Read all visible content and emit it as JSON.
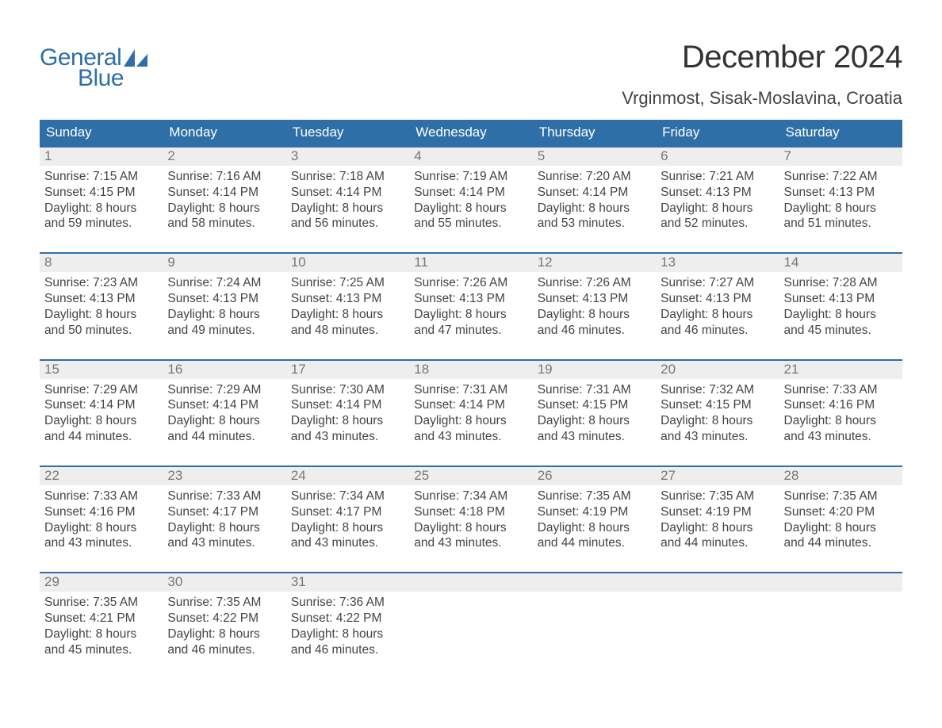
{
  "brand": {
    "word1": "General",
    "word2": "Blue",
    "color": "#2f6fa7"
  },
  "title": "December 2024",
  "location": "Vrginmost, Sisak-Moslavina, Croatia",
  "colors": {
    "header_bg": "#2f6fa7",
    "header_text": "#ffffff",
    "daynum_bg": "#eeeeee",
    "daynum_text": "#777777",
    "body_text": "#444444",
    "week_border": "#2f6fa7",
    "page_bg": "#ffffff"
  },
  "fonts": {
    "title_pt": 40,
    "location_pt": 22,
    "header_pt": 17,
    "daynum_pt": 17,
    "body_pt": 15.5
  },
  "dayHeaders": [
    "Sunday",
    "Monday",
    "Tuesday",
    "Wednesday",
    "Thursday",
    "Friday",
    "Saturday"
  ],
  "weeks": [
    [
      {
        "n": "1",
        "sunrise": "Sunrise: 7:15 AM",
        "sunset": "Sunset: 4:15 PM",
        "d1": "Daylight: 8 hours",
        "d2": "and 59 minutes."
      },
      {
        "n": "2",
        "sunrise": "Sunrise: 7:16 AM",
        "sunset": "Sunset: 4:14 PM",
        "d1": "Daylight: 8 hours",
        "d2": "and 58 minutes."
      },
      {
        "n": "3",
        "sunrise": "Sunrise: 7:18 AM",
        "sunset": "Sunset: 4:14 PM",
        "d1": "Daylight: 8 hours",
        "d2": "and 56 minutes."
      },
      {
        "n": "4",
        "sunrise": "Sunrise: 7:19 AM",
        "sunset": "Sunset: 4:14 PM",
        "d1": "Daylight: 8 hours",
        "d2": "and 55 minutes."
      },
      {
        "n": "5",
        "sunrise": "Sunrise: 7:20 AM",
        "sunset": "Sunset: 4:14 PM",
        "d1": "Daylight: 8 hours",
        "d2": "and 53 minutes."
      },
      {
        "n": "6",
        "sunrise": "Sunrise: 7:21 AM",
        "sunset": "Sunset: 4:13 PM",
        "d1": "Daylight: 8 hours",
        "d2": "and 52 minutes."
      },
      {
        "n": "7",
        "sunrise": "Sunrise: 7:22 AM",
        "sunset": "Sunset: 4:13 PM",
        "d1": "Daylight: 8 hours",
        "d2": "and 51 minutes."
      }
    ],
    [
      {
        "n": "8",
        "sunrise": "Sunrise: 7:23 AM",
        "sunset": "Sunset: 4:13 PM",
        "d1": "Daylight: 8 hours",
        "d2": "and 50 minutes."
      },
      {
        "n": "9",
        "sunrise": "Sunrise: 7:24 AM",
        "sunset": "Sunset: 4:13 PM",
        "d1": "Daylight: 8 hours",
        "d2": "and 49 minutes."
      },
      {
        "n": "10",
        "sunrise": "Sunrise: 7:25 AM",
        "sunset": "Sunset: 4:13 PM",
        "d1": "Daylight: 8 hours",
        "d2": "and 48 minutes."
      },
      {
        "n": "11",
        "sunrise": "Sunrise: 7:26 AM",
        "sunset": "Sunset: 4:13 PM",
        "d1": "Daylight: 8 hours",
        "d2": "and 47 minutes."
      },
      {
        "n": "12",
        "sunrise": "Sunrise: 7:26 AM",
        "sunset": "Sunset: 4:13 PM",
        "d1": "Daylight: 8 hours",
        "d2": "and 46 minutes."
      },
      {
        "n": "13",
        "sunrise": "Sunrise: 7:27 AM",
        "sunset": "Sunset: 4:13 PM",
        "d1": "Daylight: 8 hours",
        "d2": "and 46 minutes."
      },
      {
        "n": "14",
        "sunrise": "Sunrise: 7:28 AM",
        "sunset": "Sunset: 4:13 PM",
        "d1": "Daylight: 8 hours",
        "d2": "and 45 minutes."
      }
    ],
    [
      {
        "n": "15",
        "sunrise": "Sunrise: 7:29 AM",
        "sunset": "Sunset: 4:14 PM",
        "d1": "Daylight: 8 hours",
        "d2": "and 44 minutes."
      },
      {
        "n": "16",
        "sunrise": "Sunrise: 7:29 AM",
        "sunset": "Sunset: 4:14 PM",
        "d1": "Daylight: 8 hours",
        "d2": "and 44 minutes."
      },
      {
        "n": "17",
        "sunrise": "Sunrise: 7:30 AM",
        "sunset": "Sunset: 4:14 PM",
        "d1": "Daylight: 8 hours",
        "d2": "and 43 minutes."
      },
      {
        "n": "18",
        "sunrise": "Sunrise: 7:31 AM",
        "sunset": "Sunset: 4:14 PM",
        "d1": "Daylight: 8 hours",
        "d2": "and 43 minutes."
      },
      {
        "n": "19",
        "sunrise": "Sunrise: 7:31 AM",
        "sunset": "Sunset: 4:15 PM",
        "d1": "Daylight: 8 hours",
        "d2": "and 43 minutes."
      },
      {
        "n": "20",
        "sunrise": "Sunrise: 7:32 AM",
        "sunset": "Sunset: 4:15 PM",
        "d1": "Daylight: 8 hours",
        "d2": "and 43 minutes."
      },
      {
        "n": "21",
        "sunrise": "Sunrise: 7:33 AM",
        "sunset": "Sunset: 4:16 PM",
        "d1": "Daylight: 8 hours",
        "d2": "and 43 minutes."
      }
    ],
    [
      {
        "n": "22",
        "sunrise": "Sunrise: 7:33 AM",
        "sunset": "Sunset: 4:16 PM",
        "d1": "Daylight: 8 hours",
        "d2": "and 43 minutes."
      },
      {
        "n": "23",
        "sunrise": "Sunrise: 7:33 AM",
        "sunset": "Sunset: 4:17 PM",
        "d1": "Daylight: 8 hours",
        "d2": "and 43 minutes."
      },
      {
        "n": "24",
        "sunrise": "Sunrise: 7:34 AM",
        "sunset": "Sunset: 4:17 PM",
        "d1": "Daylight: 8 hours",
        "d2": "and 43 minutes."
      },
      {
        "n": "25",
        "sunrise": "Sunrise: 7:34 AM",
        "sunset": "Sunset: 4:18 PM",
        "d1": "Daylight: 8 hours",
        "d2": "and 43 minutes."
      },
      {
        "n": "26",
        "sunrise": "Sunrise: 7:35 AM",
        "sunset": "Sunset: 4:19 PM",
        "d1": "Daylight: 8 hours",
        "d2": "and 44 minutes."
      },
      {
        "n": "27",
        "sunrise": "Sunrise: 7:35 AM",
        "sunset": "Sunset: 4:19 PM",
        "d1": "Daylight: 8 hours",
        "d2": "and 44 minutes."
      },
      {
        "n": "28",
        "sunrise": "Sunrise: 7:35 AM",
        "sunset": "Sunset: 4:20 PM",
        "d1": "Daylight: 8 hours",
        "d2": "and 44 minutes."
      }
    ],
    [
      {
        "n": "29",
        "sunrise": "Sunrise: 7:35 AM",
        "sunset": "Sunset: 4:21 PM",
        "d1": "Daylight: 8 hours",
        "d2": "and 45 minutes."
      },
      {
        "n": "30",
        "sunrise": "Sunrise: 7:35 AM",
        "sunset": "Sunset: 4:22 PM",
        "d1": "Daylight: 8 hours",
        "d2": "and 46 minutes."
      },
      {
        "n": "31",
        "sunrise": "Sunrise: 7:36 AM",
        "sunset": "Sunset: 4:22 PM",
        "d1": "Daylight: 8 hours",
        "d2": "and 46 minutes."
      },
      {
        "empty": true
      },
      {
        "empty": true
      },
      {
        "empty": true
      },
      {
        "empty": true
      }
    ]
  ]
}
